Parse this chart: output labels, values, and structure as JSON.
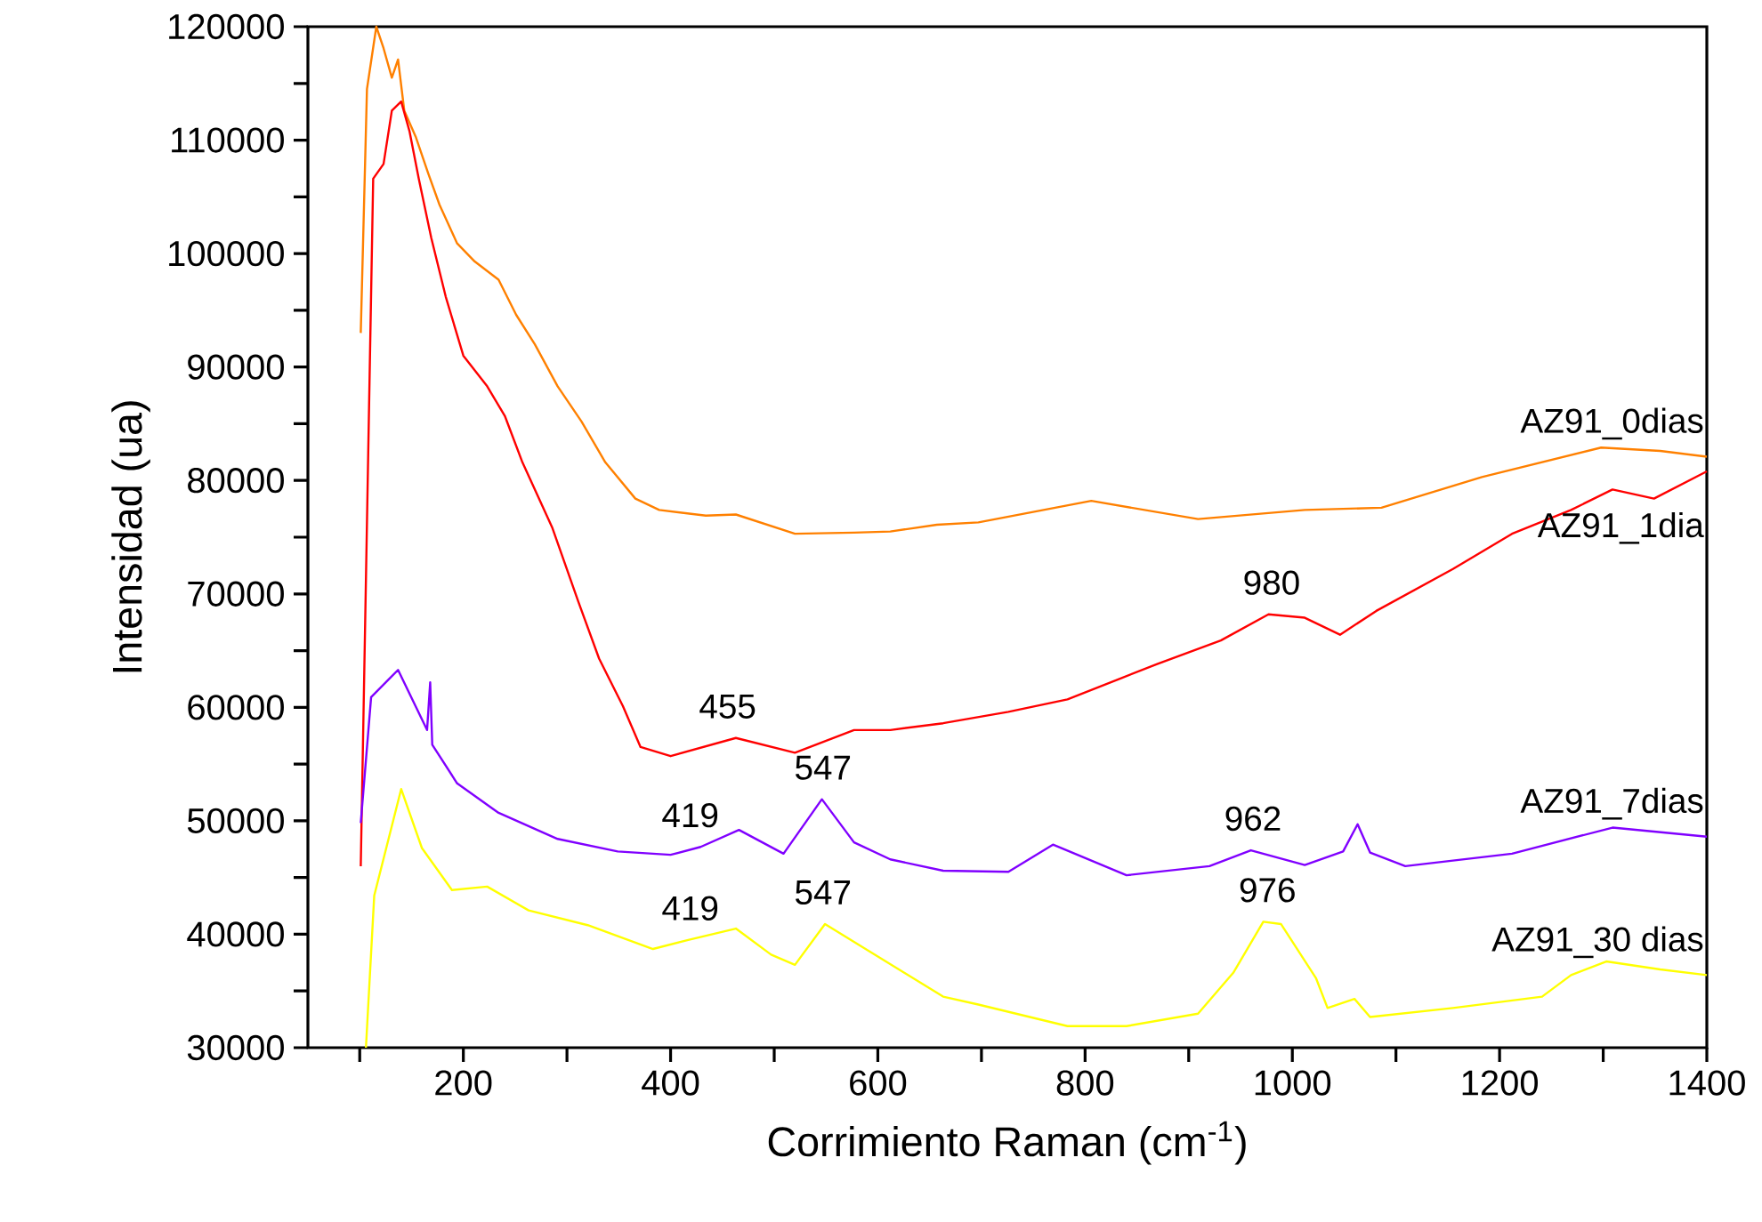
{
  "chart_data": {
    "type": "line",
    "xlabel": "Corrimiento Raman (cm$^{-1}$)",
    "ylabel": "Intensidad (ua)",
    "xlim": [
      50,
      1400
    ],
    "ylim": [
      30000,
      120000
    ],
    "xticks": [
      {
        "value": 100,
        "label": null
      },
      200,
      {
        "value": 300,
        "label": null
      },
      400,
      {
        "value": 500,
        "label": null
      },
      600,
      {
        "value": 700,
        "label": null
      },
      800,
      {
        "value": 900,
        "label": null
      },
      1000,
      {
        "value": 1100,
        "label": null
      },
      1200,
      {
        "value": 1300,
        "label": null
      },
      1400
    ],
    "yticks": [
      30000,
      {
        "value": 35000,
        "label": null
      },
      40000,
      {
        "value": 45000,
        "label": null
      },
      50000,
      {
        "value": 55000,
        "label": null
      },
      60000,
      {
        "value": 65000,
        "label": null
      },
      70000,
      {
        "value": 75000,
        "label": null
      },
      80000,
      {
        "value": 85000,
        "label": null
      },
      90000,
      {
        "value": 95000,
        "label": null
      },
      100000,
      {
        "value": 105000,
        "label": null
      },
      110000,
      {
        "value": 115000,
        "label": null
      },
      120000
    ],
    "series": [
      {
        "name": "AZ91_0dias",
        "color": "#ff8000",
        "x": [
          101,
          107,
          116,
          123,
          131,
          137,
          143,
          154,
          166,
          177,
          194,
          211,
          234,
          251,
          269,
          291,
          314,
          337,
          366,
          389,
          434,
          463,
          520,
          577,
          612,
          657,
          697,
          806,
          909,
          1012,
          1086,
          1183,
          1298,
          1355,
          1400
        ],
        "values": [
          93000,
          114500,
          120000,
          118100,
          115500,
          117100,
          112600,
          110300,
          107100,
          104300,
          100900,
          99300,
          97700,
          94600,
          92000,
          88300,
          85200,
          81600,
          78400,
          77400,
          76900,
          77000,
          75300,
          75400,
          75500,
          76100,
          76300,
          78200,
          76600,
          77400,
          77600,
          80300,
          82900,
          82600,
          82100
        ]
      },
      {
        "name": "AZ91_1dia",
        "color": "#ff0000",
        "x": [
          101,
          113,
          123,
          131,
          140,
          148,
          157,
          169,
          183,
          200,
          223,
          240,
          257,
          286,
          311,
          331,
          354,
          371,
          400,
          463,
          520,
          577,
          612,
          663,
          726,
          783,
          869,
          931,
          977,
          1012,
          1046,
          1081,
          1155,
          1212,
          1269,
          1309,
          1349,
          1400
        ],
        "values": [
          46000,
          106600,
          107900,
          112600,
          113400,
          110800,
          106600,
          101400,
          96200,
          91000,
          88300,
          85700,
          81600,
          75800,
          69300,
          64300,
          60100,
          56500,
          55700,
          57300,
          56000,
          58000,
          58000,
          58600,
          59600,
          60700,
          63800,
          65900,
          68200,
          67900,
          66400,
          68500,
          72200,
          75300,
          77400,
          79200,
          78400,
          80800
        ]
      },
      {
        "name": "AZ91_7dias",
        "color": "#8000ff",
        "x": [
          101,
          111,
          137,
          165,
          168,
          170,
          194,
          234,
          291,
          349,
          400,
          429,
          466,
          509,
          546,
          577,
          612,
          663,
          726,
          769,
          840,
          920,
          960,
          1012,
          1049,
          1063,
          1075,
          1109,
          1212,
          1309,
          1400
        ],
        "values": [
          49800,
          60900,
          63300,
          58000,
          62200,
          56700,
          53300,
          50700,
          48400,
          47300,
          47000,
          47700,
          49200,
          47100,
          51900,
          48100,
          46600,
          45600,
          45500,
          47900,
          45200,
          46000,
          47400,
          46100,
          47300,
          49700,
          47200,
          46000,
          47100,
          49400,
          48600
        ]
      },
      {
        "name": "AZ91_30 dias",
        "color": "#ffff00",
        "x": [
          106,
          114,
          140,
          160,
          189,
          223,
          263,
          320,
          383,
          417,
          463,
          497,
          520,
          549,
          606,
          663,
          697,
          783,
          840,
          909,
          943,
          972,
          989,
          1023,
          1034,
          1060,
          1075,
          1155,
          1241,
          1269,
          1303,
          1355,
          1400
        ],
        "values": [
          30000,
          43400,
          52800,
          47600,
          43900,
          44200,
          42100,
          40800,
          38700,
          39500,
          40500,
          38200,
          37300,
          40900,
          37700,
          34500,
          33800,
          31900,
          31900,
          33000,
          36600,
          41100,
          40900,
          36100,
          33500,
          34300,
          32700,
          33500,
          34500,
          36400,
          37600,
          36900,
          36400
        ]
      }
    ],
    "annotations": [
      {
        "text": "455",
        "x": 455,
        "y": 57300
      },
      {
        "text": "980",
        "x": 980,
        "y": 68200
      },
      {
        "text": "419",
        "x": 419,
        "y": 47700
      },
      {
        "text": "547",
        "x": 547,
        "y": 51900
      },
      {
        "text": "962",
        "x": 962,
        "y": 47400
      },
      {
        "text": "419",
        "x": 419,
        "y": 39500
      },
      {
        "text": "547",
        "x": 547,
        "y": 40900
      },
      {
        "text": "976",
        "x": 976,
        "y": 41100
      }
    ]
  }
}
